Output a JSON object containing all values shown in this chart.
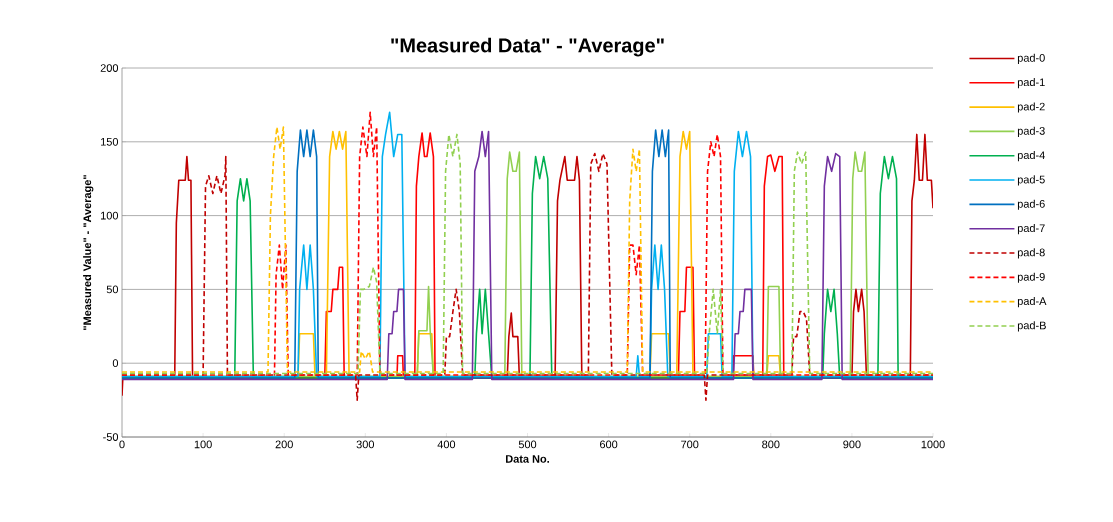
{
  "chart_data": {
    "type": "line",
    "title": "\"Measured Data\" - \"Average\"",
    "xlabel": "Data No.",
    "ylabel": "\"Measured Value\" - \"Average\"",
    "xlim": [
      0,
      1000
    ],
    "ylim": [
      -50,
      200
    ],
    "xticks": [
      0,
      100,
      200,
      300,
      400,
      500,
      600,
      700,
      800,
      900,
      1000
    ],
    "yticks": [
      -50,
      0,
      50,
      100,
      150,
      200
    ],
    "grid": "y",
    "legend": "right",
    "series": [
      {
        "name": "pad-0",
        "color": "#c00000",
        "line_style": "solid",
        "x": [
          0,
          1,
          65,
          67,
          70,
          78,
          80,
          82,
          85,
          87,
          475,
          477,
          480,
          482,
          488,
          490,
          534,
          537,
          540,
          546,
          549,
          558,
          561,
          564,
          567,
          900,
          902,
          905,
          908,
          912,
          915,
          918,
          972,
          974,
          977,
          980,
          983,
          987,
          990,
          993,
          998,
          1000
        ],
        "values": [
          -22,
          -10,
          -10,
          95,
          124,
          124,
          140,
          124,
          124,
          -10,
          -10,
          18,
          34,
          18,
          18,
          -10,
          -10,
          110,
          124,
          140,
          124,
          124,
          140,
          124,
          -10,
          -10,
          35,
          50,
          35,
          50,
          35,
          -10,
          -10,
          110,
          124,
          155,
          124,
          124,
          155,
          124,
          124,
          105
        ]
      },
      {
        "name": "pad-1",
        "color": "#ff0000",
        "line_style": "solid",
        "x": [
          0,
          250,
          252,
          258,
          260,
          266,
          268,
          272,
          274,
          339,
          340,
          346,
          347,
          361,
          363,
          366,
          370,
          373,
          376,
          380,
          384,
          386,
          686,
          688,
          694,
          696,
          704,
          706,
          753,
          754,
          778,
          779,
          790,
          792,
          796,
          800,
          805,
          810,
          814,
          816,
          1000
        ],
        "values": [
          -10,
          -10,
          35,
          35,
          50,
          50,
          65,
          65,
          -10,
          -10,
          5,
          5,
          -10,
          -10,
          120,
          140,
          156,
          140,
          140,
          156,
          140,
          -10,
          -10,
          35,
          35,
          65,
          65,
          -10,
          -10,
          5,
          5,
          -10,
          -10,
          120,
          140,
          141,
          130,
          140,
          140,
          -10,
          -10
        ]
      },
      {
        "name": "pad-2",
        "color": "#ffc000",
        "line_style": "solid",
        "x": [
          0,
          217,
          219,
          236,
          238,
          252,
          256,
          260,
          264,
          268,
          272,
          276,
          280,
          364,
          366,
          382,
          384,
          651,
          653,
          674,
          676,
          684,
          688,
          692,
          696,
          700,
          704,
          795,
          797,
          810,
          812,
          1000
        ],
        "values": [
          -9,
          -9,
          20,
          20,
          -9,
          -9,
          140,
          157,
          145,
          157,
          145,
          157,
          -9,
          -9,
          20,
          20,
          -9,
          -9,
          20,
          20,
          -9,
          -9,
          140,
          157,
          145,
          157,
          -9,
          -9,
          5,
          5,
          -9,
          -9
        ]
      },
      {
        "name": "pad-3",
        "color": "#92d050",
        "line_style": "solid",
        "x": [
          0,
          364,
          366,
          376,
          378,
          380,
          384,
          472,
          475,
          478,
          482,
          486,
          490,
          493,
          795,
          797,
          810,
          812,
          898,
          901,
          904,
          908,
          912,
          916,
          920,
          1000
        ],
        "values": [
          -9,
          -9,
          22,
          22,
          52,
          22,
          -9,
          -9,
          125,
          143,
          130,
          130,
          143,
          -9,
          -9,
          52,
          52,
          -9,
          -9,
          125,
          143,
          130,
          130,
          143,
          -9,
          -9
        ]
      },
      {
        "name": "pad-4",
        "color": "#00b050",
        "line_style": "solid",
        "x": [
          0,
          139,
          142,
          146,
          150,
          154,
          158,
          162,
          435,
          437,
          441,
          444,
          448,
          452,
          456,
          503,
          506,
          510,
          515,
          520,
          525,
          530,
          864,
          866,
          870,
          874,
          878,
          882,
          885,
          932,
          935,
          940,
          945,
          950,
          955,
          957,
          1000
        ],
        "values": [
          -10,
          -10,
          110,
          125,
          110,
          125,
          110,
          -10,
          -10,
          20,
          50,
          20,
          50,
          20,
          -10,
          -10,
          115,
          140,
          125,
          140,
          125,
          -10,
          -10,
          20,
          50,
          35,
          50,
          20,
          -10,
          -10,
          115,
          140,
          125,
          140,
          125,
          -10,
          -10
        ]
      },
      {
        "name": "pad-5",
        "color": "#00b0f0",
        "line_style": "solid",
        "x": [
          0,
          217,
          219,
          224,
          228,
          232,
          236,
          240,
          318,
          321,
          325,
          330,
          335,
          340,
          345,
          349,
          634,
          636,
          638,
          651,
          653,
          657,
          661,
          665,
          669,
          673,
          721,
          723,
          738,
          740,
          752,
          755,
          760,
          765,
          770,
          775,
          778,
          1000
        ],
        "values": [
          -9,
          -9,
          50,
          80,
          50,
          80,
          50,
          -9,
          -9,
          140,
          155,
          170,
          140,
          155,
          155,
          -9,
          -9,
          5,
          -9,
          -9,
          50,
          80,
          50,
          80,
          50,
          -9,
          -9,
          20,
          20,
          -9,
          -9,
          130,
          157,
          140,
          157,
          140,
          -9,
          -9
        ]
      },
      {
        "name": "pad-6",
        "color": "#0070c0",
        "line_style": "solid",
        "x": [
          0,
          213,
          216,
          220,
          224,
          228,
          232,
          236,
          240,
          242,
          651,
          654,
          658,
          662,
          666,
          670,
          674,
          676,
          1000
        ],
        "values": [
          -10,
          -10,
          130,
          158,
          140,
          158,
          140,
          158,
          140,
          -10,
          -10,
          130,
          158,
          140,
          158,
          140,
          158,
          -10,
          -10
        ]
      },
      {
        "name": "pad-7",
        "color": "#7030a0",
        "line_style": "solid",
        "x": [
          0,
          327,
          329,
          333,
          335,
          339,
          341,
          347,
          349,
          432,
          435,
          440,
          444,
          448,
          452,
          456,
          754,
          756,
          760,
          762,
          766,
          768,
          776,
          778,
          863,
          866,
          870,
          875,
          880,
          885,
          888,
          1000
        ],
        "values": [
          -11,
          -11,
          20,
          20,
          35,
          35,
          50,
          50,
          -11,
          -11,
          130,
          140,
          157,
          140,
          157,
          -11,
          -11,
          20,
          20,
          35,
          35,
          50,
          50,
          -11,
          -11,
          120,
          140,
          130,
          142,
          140,
          -11,
          -11
        ]
      },
      {
        "name": "pad-8",
        "color": "#c00000",
        "line_style": "dashed",
        "x": [
          0,
          100,
          103,
          107,
          112,
          117,
          122,
          127,
          128,
          130,
          288,
          290,
          292,
          398,
          400,
          404,
          408,
          412,
          416,
          420,
          575,
          578,
          583,
          588,
          593,
          598,
          604,
          718,
          720,
          722,
          826,
          828,
          832,
          836,
          840,
          844,
          848,
          1000
        ],
        "values": [
          -8,
          -8,
          120,
          127,
          115,
          127,
          115,
          127,
          140,
          -8,
          -8,
          -25,
          -8,
          -8,
          18,
          18,
          35,
          50,
          35,
          -8,
          -8,
          135,
          142,
          130,
          142,
          135,
          -8,
          -8,
          -25,
          -8,
          -8,
          18,
          18,
          35,
          35,
          30,
          -8,
          -8
        ]
      },
      {
        "name": "pad-9",
        "color": "#ff0000",
        "line_style": "dashed",
        "x": [
          0,
          188,
          190,
          194,
          198,
          202,
          205,
          290,
          293,
          297,
          302,
          306,
          310,
          314,
          318,
          623,
          626,
          630,
          634,
          638,
          642,
          719,
          722,
          726,
          730,
          734,
          738,
          741,
          1000
        ],
        "values": [
          -8,
          -8,
          60,
          80,
          50,
          80,
          -8,
          -8,
          140,
          160,
          140,
          170,
          140,
          160,
          -8,
          -8,
          80,
          80,
          60,
          80,
          -8,
          -8,
          130,
          150,
          140,
          155,
          140,
          -8,
          -8
        ]
      },
      {
        "name": "pad-A",
        "color": "#ffc000",
        "line_style": "dashed",
        "x": [
          0,
          180,
          183,
          187,
          191,
          195,
          199,
          204,
          293,
          295,
          300,
          305,
          309,
          623,
          626,
          630,
          634,
          638,
          642,
          1000
        ],
        "values": [
          -6,
          -6,
          100,
          140,
          160,
          145,
          160,
          -6,
          -6,
          8,
          3,
          8,
          -6,
          -6,
          110,
          145,
          130,
          145,
          -6,
          -6
        ]
      },
      {
        "name": "pad-B",
        "color": "#92d050",
        "line_style": "dashed",
        "x": [
          0,
          291,
          294,
          298,
          305,
          310,
          314,
          318,
          396,
          399,
          403,
          408,
          413,
          417,
          420,
          721,
          724,
          729,
          734,
          738,
          741,
          826,
          829,
          833,
          838,
          843,
          848,
          1000
        ],
        "values": [
          -7,
          -7,
          50,
          50,
          52,
          65,
          55,
          -7,
          -7,
          130,
          155,
          140,
          155,
          135,
          -7,
          -7,
          20,
          50,
          20,
          50,
          -7,
          -7,
          130,
          143,
          135,
          143,
          -7,
          -7
        ]
      }
    ]
  }
}
